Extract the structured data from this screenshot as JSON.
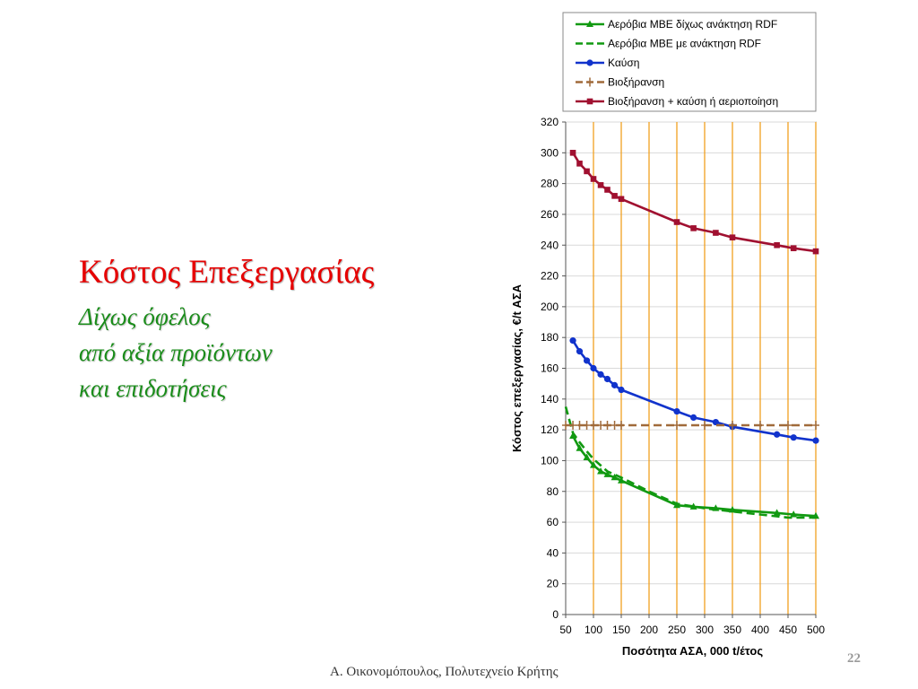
{
  "slide": {
    "title": "Κόστος Επεξεργασίας",
    "subtitle_lines": [
      "Δίχως όφελος",
      "από αξία προϊόντων",
      "και επιδοτήσεις"
    ],
    "footer": "Α. Οικονομόπουλος, Πολυτεχνείο Κρήτης",
    "page_number": "22"
  },
  "chart_data": {
    "type": "line",
    "title": "",
    "xlabel": "Ποσότητα ΑΣΑ, 000 t/έτος",
    "ylabel": "Κόστος επεξεργασίας, €/t ΑΣΑ",
    "xlim": [
      50,
      500
    ],
    "ylim": [
      0,
      320
    ],
    "x_ticks": [
      50,
      100,
      150,
      200,
      250,
      300,
      350,
      400,
      450,
      500
    ],
    "y_ticks": [
      0,
      20,
      40,
      60,
      80,
      100,
      120,
      140,
      160,
      180,
      200,
      220,
      240,
      260,
      280,
      300,
      320
    ],
    "vertical_gridline_color": "#f0a020",
    "horizontal_gridline_color": "#d9d9d9",
    "legend_position": "top",
    "series": [
      {
        "name": "Αερόβια ΜΒΕ δίχως ανάκτηση RDF",
        "color": "#119911",
        "dash": "solid",
        "marker": "triangle",
        "points": [
          [
            63,
            116
          ],
          [
            75,
            108
          ],
          [
            88,
            102
          ],
          [
            100,
            97
          ],
          [
            113,
            93
          ],
          [
            125,
            91
          ],
          [
            138,
            89
          ],
          [
            150,
            87
          ],
          [
            250,
            71
          ],
          [
            280,
            70
          ],
          [
            320,
            69
          ],
          [
            350,
            68
          ],
          [
            430,
            66
          ],
          [
            460,
            65
          ],
          [
            500,
            64
          ]
        ]
      },
      {
        "name": "Αερόβια ΜΒΕ με ανάκτηση RDF",
        "color": "#119911",
        "dash": "dashed",
        "marker": "none",
        "points": [
          [
            50,
            135
          ],
          [
            63,
            118
          ],
          [
            75,
            112
          ],
          [
            88,
            106
          ],
          [
            100,
            101
          ],
          [
            125,
            93
          ],
          [
            150,
            89
          ],
          [
            200,
            80
          ],
          [
            250,
            72
          ],
          [
            300,
            69
          ],
          [
            350,
            67
          ],
          [
            400,
            65
          ],
          [
            450,
            63
          ],
          [
            500,
            63
          ]
        ]
      },
      {
        "name": "Καύση",
        "color": "#1133cc",
        "dash": "solid",
        "marker": "circle",
        "points": [
          [
            63,
            178
          ],
          [
            75,
            171
          ],
          [
            88,
            165
          ],
          [
            100,
            160
          ],
          [
            113,
            156
          ],
          [
            125,
            153
          ],
          [
            138,
            149
          ],
          [
            150,
            146
          ],
          [
            250,
            132
          ],
          [
            280,
            128
          ],
          [
            320,
            125
          ],
          [
            350,
            122
          ],
          [
            430,
            117
          ],
          [
            460,
            115
          ],
          [
            500,
            113
          ]
        ]
      },
      {
        "name": "Βιοξήρανση",
        "color": "#a06a3a",
        "dash": "dashed",
        "marker": "plus",
        "points": [
          [
            50,
            123
          ],
          [
            63,
            123
          ],
          [
            75,
            123
          ],
          [
            88,
            123
          ],
          [
            100,
            123
          ],
          [
            113,
            123
          ],
          [
            125,
            123
          ],
          [
            138,
            123
          ],
          [
            150,
            123
          ],
          [
            250,
            123
          ],
          [
            300,
            123
          ],
          [
            350,
            123
          ],
          [
            400,
            123
          ],
          [
            450,
            123
          ],
          [
            500,
            123
          ]
        ]
      },
      {
        "name": "Βιοξήρανση + καύση ή αεριοποίηση",
        "color": "#a01030",
        "dash": "solid",
        "marker": "square",
        "points": [
          [
            63,
            300
          ],
          [
            75,
            293
          ],
          [
            88,
            288
          ],
          [
            100,
            283
          ],
          [
            113,
            279
          ],
          [
            125,
            276
          ],
          [
            138,
            272
          ],
          [
            150,
            270
          ],
          [
            250,
            255
          ],
          [
            280,
            251
          ],
          [
            320,
            248
          ],
          [
            350,
            245
          ],
          [
            430,
            240
          ],
          [
            460,
            238
          ],
          [
            500,
            236
          ]
        ]
      }
    ]
  }
}
